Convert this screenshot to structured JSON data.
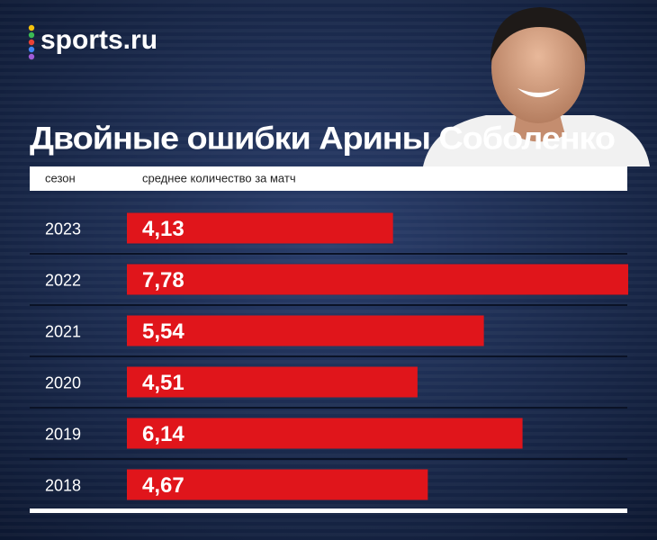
{
  "logo": "sports.ru",
  "chart_data": {
    "type": "bar",
    "orientation": "horizontal",
    "title": "Двойные ошибки Арины Соболенко",
    "category_header": "сезон",
    "value_header": "среднее количество за матч",
    "categories": [
      "2023",
      "2022",
      "2021",
      "2020",
      "2019",
      "2018"
    ],
    "values": [
      4.13,
      7.78,
      5.54,
      4.51,
      6.14,
      4.67
    ],
    "value_labels": [
      "4,13",
      "7,78",
      "5,54",
      "4,51",
      "6,14",
      "4,67"
    ],
    "color": "#e0151b"
  }
}
